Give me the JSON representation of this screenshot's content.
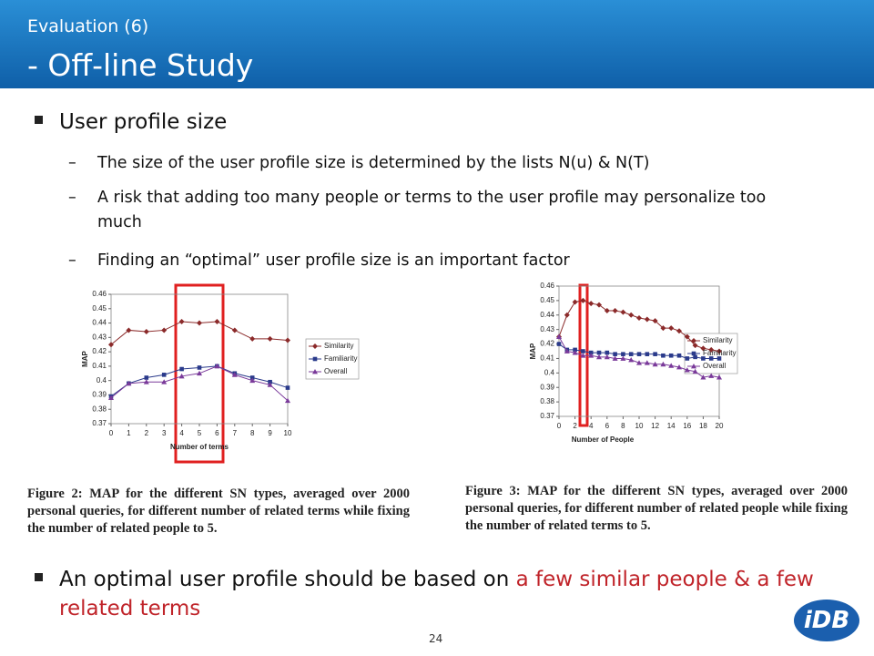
{
  "slide": {
    "header": {
      "title": "Evaluation (6)",
      "subtitle": "- Off-line Study"
    },
    "bullets": [
      {
        "text": "User profile size",
        "sub": [
          "The size of the user profile size is determined by the lists N(u) & N(T)",
          "A risk that adding too many people or terms to the user profile may personalize too much",
          "Finding an “optimal” user profile size  is an important factor"
        ]
      },
      {
        "parts": [
          "An optimal user profile should be based on ",
          "a few similar people & a few related terms"
        ]
      }
    ],
    "captions": [
      "Figure 2: MAP for the different SN types, averaged over 2000 personal queries, for different number of related terms while fixing the number of related people to 5.",
      "Figure 3: MAP for the different SN types, averaged over 2000 personal queries, for different number of related people while fixing the number of related terms to 5."
    ],
    "page_number": "24",
    "logo": "iDB"
  },
  "chart_data": [
    {
      "type": "line",
      "xlabel": "Number of terms",
      "ylabel": "MAP",
      "x": [
        0,
        1,
        2,
        3,
        4,
        5,
        6,
        7,
        8,
        9,
        10
      ],
      "xlim": [
        0,
        10
      ],
      "xticks": [
        0,
        1,
        2,
        3,
        4,
        5,
        6,
        7,
        8,
        9,
        10
      ],
      "ylim": [
        0.37,
        0.46
      ],
      "yticks": [
        0.37,
        0.38,
        0.39,
        0.4,
        0.41,
        0.42,
        0.43,
        0.44,
        0.45,
        0.46
      ],
      "legend": "right",
      "series": [
        {
          "name": "Similarity",
          "color": "#8b2a2a",
          "marker": "diamond",
          "values": [
            0.425,
            0.435,
            0.434,
            0.435,
            0.441,
            0.44,
            0.441,
            0.435,
            0.429,
            0.429,
            0.428
          ]
        },
        {
          "name": "Familiarity",
          "color": "#2a3a8b",
          "marker": "square",
          "values": [
            0.389,
            0.398,
            0.402,
            0.404,
            0.408,
            0.409,
            0.41,
            0.405,
            0.402,
            0.399,
            0.395
          ]
        },
        {
          "name": "Overall",
          "color": "#7a3a9a",
          "marker": "triangle",
          "values": [
            0.388,
            0.398,
            0.399,
            0.399,
            0.403,
            0.405,
            0.41,
            0.404,
            0.4,
            0.397,
            0.386
          ]
        }
      ]
    },
    {
      "type": "line",
      "xlabel": "Number of People",
      "ylabel": "MAP",
      "x": [
        0,
        1,
        2,
        3,
        4,
        5,
        6,
        7,
        8,
        9,
        10,
        11,
        12,
        13,
        14,
        15,
        16,
        17,
        18,
        19,
        20
      ],
      "xlim": [
        0,
        20
      ],
      "xticks": [
        0,
        2,
        4,
        6,
        8,
        10,
        12,
        14,
        16,
        18,
        20
      ],
      "ylim": [
        0.37,
        0.46
      ],
      "yticks": [
        0.37,
        0.38,
        0.39,
        0.4,
        0.41,
        0.42,
        0.43,
        0.44,
        0.45,
        0.46
      ],
      "legend": "right",
      "series": [
        {
          "name": "Similarity",
          "color": "#8b2a2a",
          "marker": "diamond",
          "values": [
            0.425,
            0.44,
            0.449,
            0.45,
            0.448,
            0.447,
            0.443,
            0.443,
            0.442,
            0.44,
            0.438,
            0.437,
            0.436,
            0.431,
            0.431,
            0.429,
            0.425,
            0.419,
            0.417,
            0.416,
            0.415
          ]
        },
        {
          "name": "Familiarity",
          "color": "#2a3a8b",
          "marker": "square",
          "values": [
            0.42,
            0.416,
            0.416,
            0.415,
            0.414,
            0.414,
            0.414,
            0.413,
            0.413,
            0.413,
            0.413,
            0.413,
            0.413,
            0.412,
            0.412,
            0.412,
            0.41,
            0.411,
            0.41,
            0.41,
            0.41
          ]
        },
        {
          "name": "Overall",
          "color": "#7a3a9a",
          "marker": "triangle",
          "values": [
            0.425,
            0.415,
            0.414,
            0.412,
            0.412,
            0.411,
            0.411,
            0.41,
            0.41,
            0.409,
            0.407,
            0.407,
            0.406,
            0.406,
            0.405,
            0.404,
            0.402,
            0.401,
            0.397,
            0.398,
            0.397
          ]
        }
      ]
    }
  ]
}
